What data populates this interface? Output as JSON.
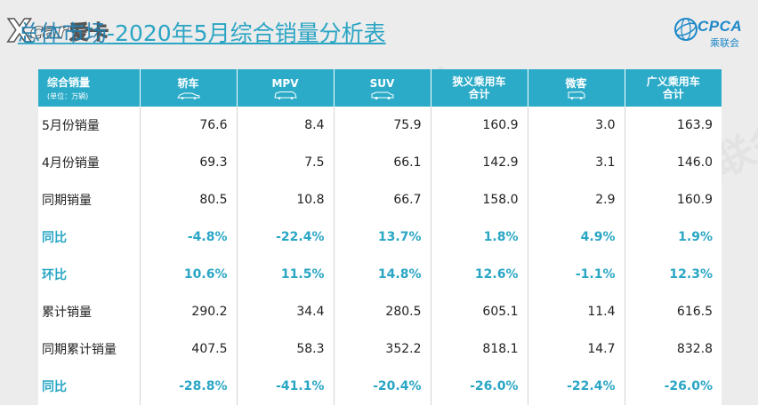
{
  "header": {
    "title_lead": "总体市场",
    "title_rest": "-2020年5月综合销量分析表",
    "logo_left": {
      "x": "X",
      "car": "car",
      "cn": "爱卡"
    },
    "logo_right": {
      "name": "CPCA",
      "cn": "乘联会"
    }
  },
  "watermark": "CPCA乘联会",
  "table": {
    "corner": {
      "main": "综合销量",
      "sub": "(单位：万辆)"
    },
    "columns": [
      {
        "label": "轿车",
        "icon": "sedan-icon"
      },
      {
        "label": "MPV",
        "icon": "mpv-icon"
      },
      {
        "label": "SUV",
        "icon": "suv-icon"
      },
      {
        "label1": "狭义乘用车",
        "label2": "合计"
      },
      {
        "label": "微客",
        "icon": "minivan-icon"
      },
      {
        "label1": "广义乘用车",
        "label2": "合计"
      }
    ],
    "rows": [
      {
        "label": "5月份销量",
        "values": [
          "76.6",
          "8.4",
          "75.9",
          "160.9",
          "3.0",
          "163.9"
        ],
        "pct": false
      },
      {
        "label": "4月份销量",
        "values": [
          "69.3",
          "7.5",
          "66.1",
          "142.9",
          "3.1",
          "146.0"
        ],
        "pct": false
      },
      {
        "label": "同期销量",
        "values": [
          "80.5",
          "10.8",
          "66.7",
          "158.0",
          "2.9",
          "160.9"
        ],
        "pct": false
      },
      {
        "label": "同比",
        "values": [
          "-4.8%",
          "-22.4%",
          "13.7%",
          "1.8%",
          "4.9%",
          "1.9%"
        ],
        "pct": true
      },
      {
        "label": "环比",
        "values": [
          "10.6%",
          "11.5%",
          "14.8%",
          "12.6%",
          "-1.1%",
          "12.3%"
        ],
        "pct": true
      },
      {
        "label": "累计销量",
        "values": [
          "290.2",
          "34.4",
          "280.5",
          "605.1",
          "11.4",
          "616.5"
        ],
        "pct": false
      },
      {
        "label": "同期累计销量",
        "values": [
          "407.5",
          "58.3",
          "352.2",
          "818.1",
          "14.7",
          "832.8"
        ],
        "pct": false
      },
      {
        "label": "同比",
        "values": [
          "-28.8%",
          "-41.1%",
          "-20.4%",
          "-26.0%",
          "-22.4%",
          "-26.0%"
        ],
        "pct": true
      }
    ]
  },
  "colors": {
    "header_bg": "#2babc8",
    "pct_text": "#2aa6c5",
    "title": "#2ba5c4"
  }
}
